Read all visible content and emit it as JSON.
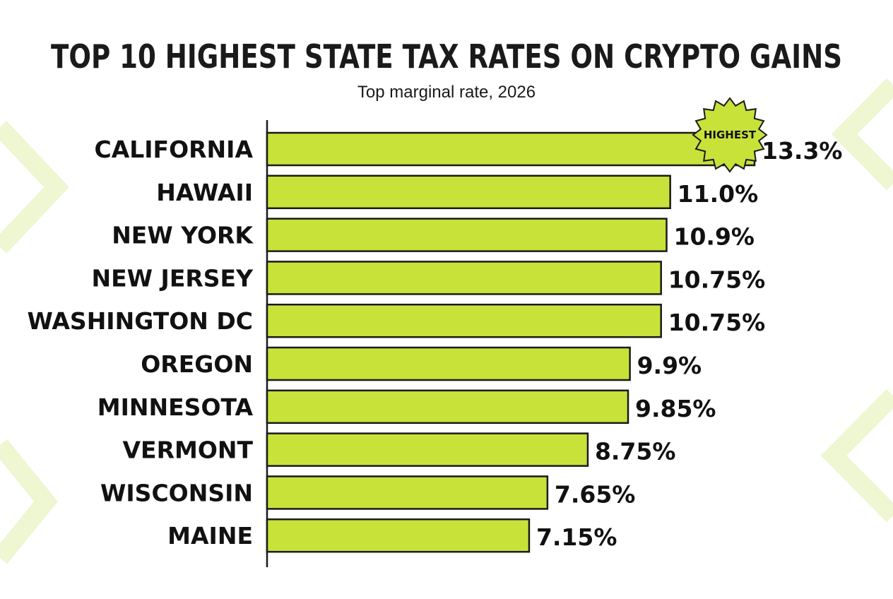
{
  "chart_data": {
    "type": "bar",
    "orientation": "horizontal",
    "title": "TOP 10 HIGHEST STATE TAX RATES ON CRYPTO GAINS",
    "subtitle": "Top marginal rate, 2026",
    "xlabel": "",
    "ylabel": "",
    "xlim": [
      0,
      13.3
    ],
    "grid": false,
    "categories": [
      "CALIFORNIA",
      "HAWAII",
      "NEW YORK",
      "NEW JERSEY",
      "WASHINGTON DC",
      "OREGON",
      "MINNESOTA",
      "VERMONT",
      "WISCONSIN",
      "MAINE"
    ],
    "values": [
      13.3,
      11.0,
      10.9,
      10.75,
      10.75,
      9.9,
      9.85,
      8.75,
      7.65,
      7.15
    ],
    "value_labels": [
      "13.3%",
      "11.0%",
      "10.9%",
      "10.75%",
      "10.75%",
      "9.9%",
      "9.85%",
      "8.75%",
      "7.65%",
      "7.15%"
    ],
    "annotation": {
      "text": "HIGHEST",
      "category": "CALIFORNIA",
      "shape": "starburst-badge"
    },
    "colors": {
      "bar_fill": "#c8e23a",
      "bar_stroke": "#1a1a1a",
      "badge_fill": "#c8e23a",
      "decoration": "#eef6d2",
      "text": "#111111"
    }
  }
}
